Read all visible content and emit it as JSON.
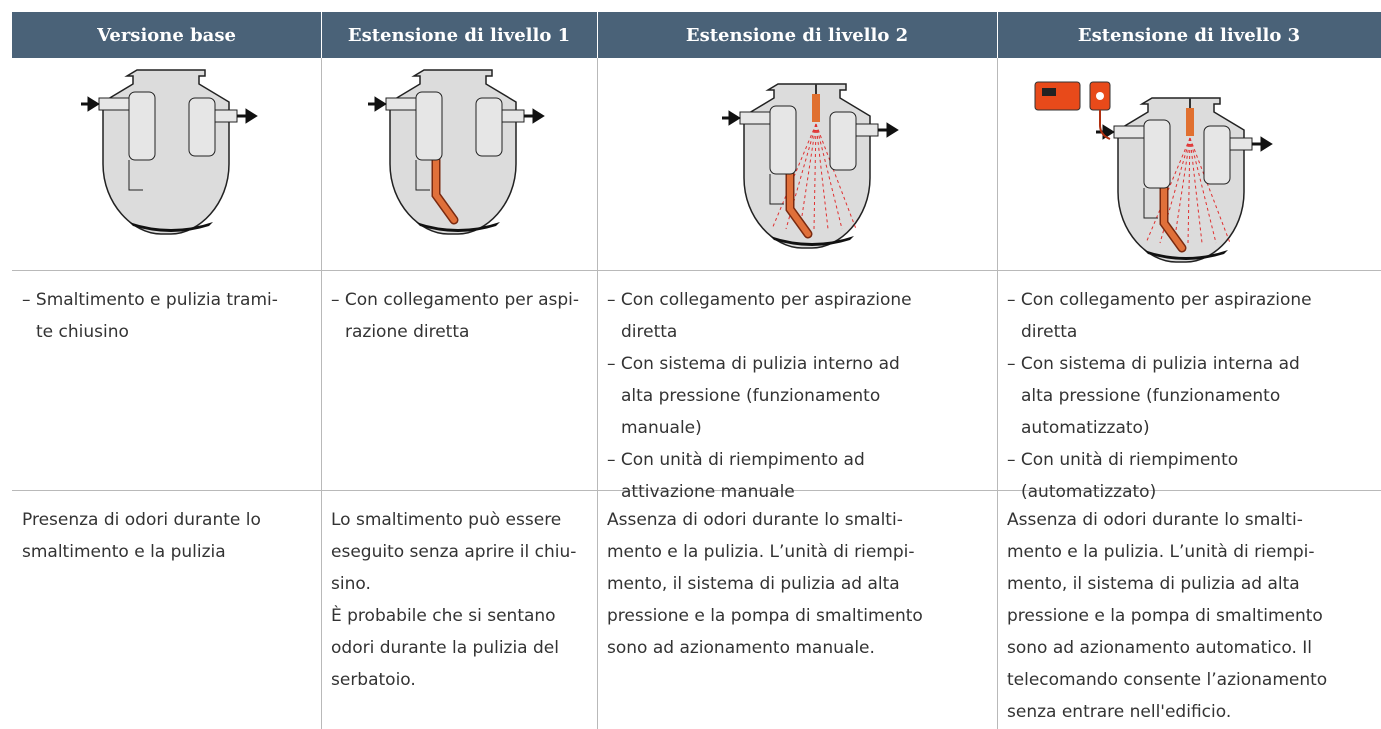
{
  "table": {
    "header": [
      "Versione base",
      "Estensione di livello 1",
      "Estensione di livello 2",
      "Estensione di livello 3"
    ],
    "features": [
      [
        "– Smaltimento e pulizia trami-",
        "te chiusino"
      ],
      [
        "– Con collegamento per aspi-",
        "razione diretta"
      ],
      [
        "– Con collegamento per aspirazione",
        "diretta",
        "– Con sistema di pulizia interno ad",
        "alta pressione (funzionamento",
        "manuale)",
        "– Con unità di riempimento ad",
        "attivazione manuale"
      ],
      [
        "– Con collegamento per aspirazione",
        "diretta",
        "– Con sistema di pulizia interna ad",
        "alta pressione (funzionamento",
        "automatizzato)",
        "– Con unità di riempimento",
        "(automatizzato)"
      ]
    ],
    "descriptions": [
      [
        "Presenza di odori durante lo",
        "smaltimento e la pulizia"
      ],
      [
        "Lo smaltimento può essere",
        "eseguito senza aprire il chiu-",
        "sino.",
        "È probabile che si sentano",
        "odori durante la pulizia del",
        "serbatoio."
      ],
      [
        "Assenza di odori durante lo smalti-",
        "mento e la pulizia. L’unità di riempi-",
        "mento, il sistema di pulizia ad alta",
        "pressione e la pompa di smaltimento",
        "sono ad azionamento manuale."
      ],
      [
        "Assenza di odori durante lo smalti-",
        "mento e la pulizia. L’unità di riempi-",
        "mento, il sistema di pulizia ad alta",
        "pressione e la pompa di smaltimento",
        "sono ad azionamento automatico. Il",
        "telecomando consente l’azionamento",
        "senza entrare nell'edificio."
      ]
    ]
  }
}
